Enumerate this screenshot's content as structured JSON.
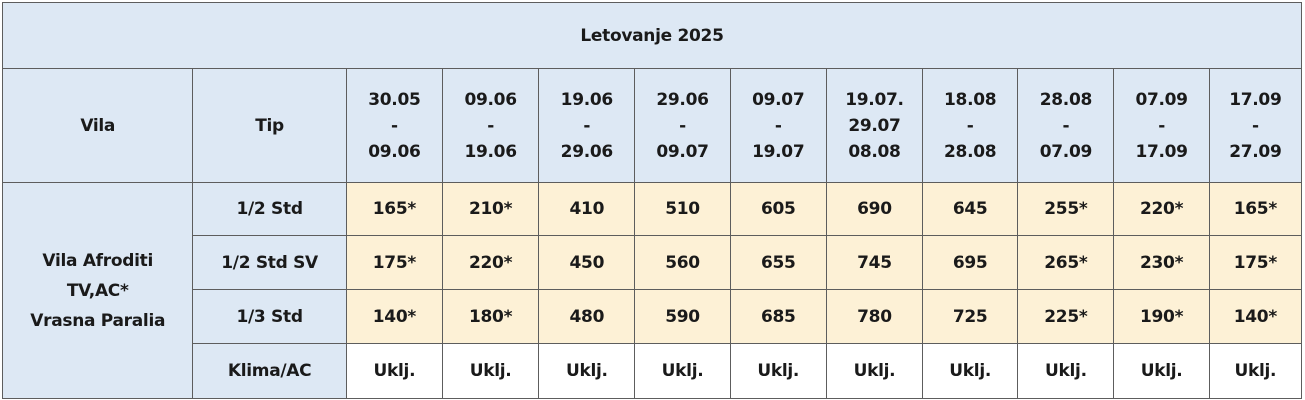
{
  "title": "Letovanje 2025",
  "headers": {
    "vila": "Vila",
    "tip": "Tip"
  },
  "periods": [
    {
      "from": "30.05",
      "sep": "-",
      "to": "09.06"
    },
    {
      "from": "09.06",
      "sep": "-",
      "to": "19.06"
    },
    {
      "from": "19.06",
      "sep": "-",
      "to": "29.06"
    },
    {
      "from": "29.06",
      "sep": "-",
      "to": "09.07"
    },
    {
      "from": "09.07",
      "sep": "-",
      "to": "19.07"
    },
    {
      "from": "19.07.",
      "sep": "29.07",
      "to": "08.08"
    },
    {
      "from": "18.08",
      "sep": "-",
      "to": "28.08"
    },
    {
      "from": "28.08",
      "sep": "-",
      "to": "07.09"
    },
    {
      "from": "07.09",
      "sep": "-",
      "to": "17.09"
    },
    {
      "from": "17.09",
      "sep": "-",
      "to": "27.09"
    }
  ],
  "villa": {
    "line1": "Vila Afroditi",
    "line2": "TV,AC*",
    "line3": "Vrasna Paralia"
  },
  "rows": [
    {
      "tip": "1/2 Std",
      "values": [
        "165*",
        "210*",
        "410",
        "510",
        "605",
        "690",
        "645",
        "255*",
        "220*",
        "165*"
      ]
    },
    {
      "tip": "1/2 Std SV",
      "values": [
        "175*",
        "220*",
        "450",
        "560",
        "655",
        "745",
        "695",
        "265*",
        "230*",
        "175*"
      ]
    },
    {
      "tip": "1/3 Std",
      "values": [
        "140*",
        "180*",
        "480",
        "590",
        "685",
        "780",
        "725",
        "225*",
        "190*",
        "140*"
      ]
    },
    {
      "tip": "Klima/AC",
      "values": [
        "Uklj.",
        "Uklj.",
        "Uklj.",
        "Uklj.",
        "Uklj.",
        "Uklj.",
        "Uklj.",
        "Uklj.",
        "Uklj.",
        "Uklj."
      ]
    }
  ],
  "colors": {
    "header_bg": "#dde8f4",
    "price_bg": "#fdf1d6",
    "border": "#5d5d5d"
  }
}
